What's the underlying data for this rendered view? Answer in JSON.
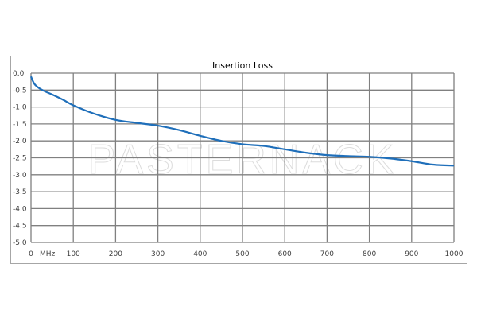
{
  "chart_data": {
    "type": "line",
    "title": "Insertion Loss",
    "xlabel": "MHz",
    "ylabel": "",
    "xlim": [
      0,
      1000
    ],
    "ylim": [
      -5.0,
      0.0
    ],
    "x_ticks": [
      "0",
      "100",
      "200",
      "300",
      "400",
      "500",
      "600",
      "700",
      "800",
      "900",
      "1000"
    ],
    "y_ticks": [
      "0.0",
      "-0.5",
      "-1.0",
      "-1.5",
      "-2.0",
      "-2.5",
      "-3.0",
      "-3.5",
      "-4.0",
      "-4.5",
      "-5.0"
    ],
    "grid": true,
    "legend": "none",
    "series": [
      {
        "name": "Insertion Loss",
        "color": "#1f6fba",
        "x": [
          0,
          5,
          10,
          20,
          35,
          50,
          75,
          100,
          150,
          200,
          250,
          300,
          350,
          400,
          450,
          500,
          550,
          600,
          650,
          700,
          750,
          800,
          850,
          900,
          950,
          1000
        ],
        "y": [
          -0.1,
          -0.25,
          -0.35,
          -0.45,
          -0.55,
          -0.63,
          -0.78,
          -0.95,
          -1.2,
          -1.38,
          -1.47,
          -1.55,
          -1.68,
          -1.85,
          -2.0,
          -2.1,
          -2.15,
          -2.25,
          -2.35,
          -2.42,
          -2.45,
          -2.47,
          -2.52,
          -2.6,
          -2.7,
          -2.73
        ]
      }
    ]
  },
  "watermark": "PASTERNACK",
  "colors": {
    "grid": "#808080",
    "frame": "#a6a6a6",
    "line": "#1f6fba"
  }
}
